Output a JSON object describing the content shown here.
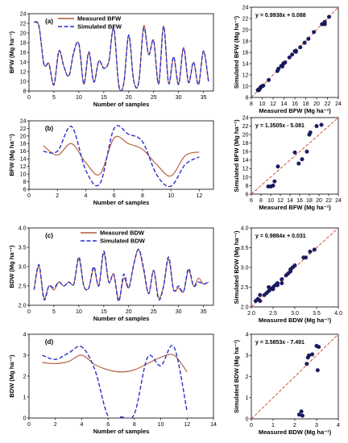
{
  "chart_data": [
    {
      "id": "a",
      "type": "line",
      "panel_label": "(a)",
      "xlabel": "Number of samples",
      "ylabel": "BFW (Mg ha⁻¹)",
      "xlim": [
        0,
        37
      ],
      "ylim": [
        8,
        24
      ],
      "xticks": [
        0,
        5,
        10,
        15,
        20,
        25,
        30,
        35
      ],
      "yticks": [
        8,
        10,
        12,
        14,
        16,
        18,
        20,
        22,
        24
      ],
      "legend_position": "top-left",
      "x": [
        1,
        2,
        3,
        4,
        5,
        6,
        7,
        8,
        9,
        10,
        11,
        12,
        13,
        14,
        15,
        16,
        17,
        18,
        19,
        20,
        21,
        22,
        23,
        24,
        25,
        26,
        27,
        28,
        29,
        30,
        31,
        32,
        33,
        34,
        35,
        36
      ],
      "series": [
        {
          "name": "Measured BFW",
          "color": "#b2583a",
          "dash": "solid",
          "values": [
            22.3,
            21.5,
            13.5,
            13.7,
            9.2,
            16.2,
            13.0,
            11.2,
            16.0,
            17.8,
            9.4,
            16.0,
            9.8,
            14.2,
            12.8,
            14.0,
            21.0,
            9.2,
            9.5,
            19.5,
            10.2,
            9.7,
            21.5,
            15.5,
            18.5,
            9.5,
            21.5,
            9.6,
            15.0,
            9.3,
            17.0,
            9.7,
            13.9,
            9.4,
            16.2,
            10.0
          ]
        },
        {
          "name": "Simulated BFW",
          "color": "#2b2ec9",
          "dash": "dashed",
          "values": [
            22.3,
            21.3,
            13.6,
            13.5,
            9.3,
            16.3,
            13.1,
            11.1,
            16.2,
            17.7,
            9.5,
            16.1,
            9.9,
            14.2,
            12.7,
            14.1,
            21.0,
            9.3,
            9.5,
            19.6,
            10.1,
            9.8,
            21.0,
            15.6,
            18.4,
            9.5,
            21.4,
            9.6,
            15.1,
            9.4,
            16.9,
            9.8,
            14.0,
            9.3,
            16.3,
            10.0
          ]
        }
      ]
    },
    {
      "id": "a_scatter",
      "type": "scatter",
      "xlabel": "Measured BFW (Mg ha⁻¹)",
      "ylabel": "Simulated BFW (Mg ha⁻¹)",
      "xlim": [
        8,
        24
      ],
      "ylim": [
        8,
        24
      ],
      "xticks": [
        8,
        10,
        12,
        14,
        16,
        18,
        20,
        22,
        24
      ],
      "yticks": [
        8,
        10,
        12,
        14,
        16,
        18,
        20,
        22,
        24
      ],
      "equation": "y = 0.9938x + 0.088",
      "points": [
        [
          9.2,
          9.3
        ],
        [
          9.3,
          9.4
        ],
        [
          9.4,
          9.3
        ],
        [
          9.5,
          9.5
        ],
        [
          9.6,
          9.6
        ],
        [
          9.7,
          9.8
        ],
        [
          9.8,
          9.9
        ],
        [
          10.0,
          10.0
        ],
        [
          10.2,
          10.1
        ],
        [
          11.2,
          11.1
        ],
        [
          12.8,
          12.7
        ],
        [
          13.0,
          13.1
        ],
        [
          13.5,
          13.6
        ],
        [
          13.7,
          13.5
        ],
        [
          13.9,
          14.0
        ],
        [
          14.0,
          14.1
        ],
        [
          14.2,
          14.2
        ],
        [
          15.0,
          15.1
        ],
        [
          15.5,
          15.6
        ],
        [
          16.0,
          16.2
        ],
        [
          16.2,
          16.3
        ],
        [
          16.2,
          16.1
        ],
        [
          17.0,
          16.9
        ],
        [
          17.8,
          17.7
        ],
        [
          18.5,
          18.4
        ],
        [
          19.5,
          19.6
        ],
        [
          21.0,
          21.0
        ],
        [
          21.5,
          21.3
        ],
        [
          21.5,
          21.0
        ],
        [
          21.5,
          21.4
        ],
        [
          22.3,
          22.3
        ]
      ]
    },
    {
      "id": "b",
      "type": "line",
      "panel_label": "(b)",
      "xlabel": "Number of samples",
      "ylabel": "BFW (Mg ha⁻¹)",
      "xlim": [
        0,
        13
      ],
      "ylim": [
        6,
        24
      ],
      "xticks": [
        0,
        2,
        4,
        6,
        8,
        10,
        12
      ],
      "yticks": [
        6,
        8,
        10,
        12,
        14,
        16,
        18,
        20,
        22,
        24
      ],
      "x": [
        1,
        2,
        3,
        4,
        5,
        6,
        7,
        8,
        9,
        10,
        11,
        12
      ],
      "series": [
        {
          "name": "",
          "color": "#b2583a",
          "dash": "solid",
          "values": [
            17.5,
            15.0,
            18.0,
            13.0,
            10.0,
            19.5,
            18.0,
            16.5,
            12.5,
            9.5,
            14.8,
            15.8
          ]
        },
        {
          "name": "",
          "color": "#2b2ec9",
          "dash": "dashed",
          "values": [
            16.0,
            16.0,
            22.5,
            11.0,
            7.5,
            22.0,
            20.5,
            18.5,
            9.8,
            6.8,
            12.5,
            14.5
          ]
        }
      ]
    },
    {
      "id": "b_scatter",
      "type": "scatter",
      "xlabel": "Measured BFW (Mg ha⁻¹)",
      "ylabel": "Simulated BFW (Mg ha⁻¹)",
      "xlim": [
        6,
        24
      ],
      "ylim": [
        6,
        24
      ],
      "xticks": [
        6,
        8,
        10,
        12,
        14,
        16,
        18,
        20,
        22,
        24
      ],
      "yticks": [
        6,
        8,
        10,
        12,
        14,
        16,
        18,
        20,
        22,
        24
      ],
      "equation": "y = 1.3505x - 5.081",
      "points": [
        [
          9.5,
          7.8
        ],
        [
          10.0,
          7.8
        ],
        [
          10.5,
          8.0
        ],
        [
          10.8,
          9.0
        ],
        [
          11.5,
          12.5
        ],
        [
          15.0,
          15.8
        ],
        [
          15.8,
          13.2
        ],
        [
          16.5,
          14.2
        ],
        [
          17.5,
          16.0
        ],
        [
          18.0,
          20.0
        ],
        [
          18.2,
          20.5
        ],
        [
          19.5,
          22.0
        ],
        [
          20.5,
          22.3
        ]
      ]
    },
    {
      "id": "c",
      "type": "line",
      "panel_label": "(c)",
      "xlabel": "Number of samples",
      "ylabel": "BDW (Mg ha⁻¹)",
      "xlim": [
        0,
        37
      ],
      "ylim": [
        2.0,
        4.0
      ],
      "xticks": [
        0,
        5,
        10,
        15,
        20,
        25,
        30,
        35
      ],
      "yticks": [
        2.0,
        2.5,
        3.0,
        3.5,
        4.0
      ],
      "legend_position": "top-center",
      "x": [
        1,
        2,
        3,
        4,
        5,
        6,
        7,
        8,
        9,
        10,
        11,
        12,
        13,
        14,
        15,
        16,
        17,
        18,
        19,
        20,
        21,
        22,
        23,
        24,
        25,
        26,
        27,
        28,
        29,
        30,
        31,
        32,
        33,
        34,
        35,
        36
      ],
      "series": [
        {
          "name": "Measured BDW",
          "color": "#b2583a",
          "dash": "solid",
          "values": [
            2.4,
            3.0,
            2.2,
            2.5,
            2.4,
            2.6,
            2.5,
            2.6,
            2.55,
            3.2,
            2.5,
            2.45,
            2.95,
            2.5,
            3.35,
            2.6,
            2.8,
            2.15,
            2.7,
            2.45,
            3.05,
            3.45,
            2.9,
            2.3,
            2.9,
            2.2,
            2.5,
            3.2,
            2.4,
            2.45,
            2.35,
            2.9,
            2.5,
            2.7,
            2.55,
            2.6
          ]
        },
        {
          "name": "Simulated BDW",
          "color": "#2b2ec9",
          "dash": "dashed",
          "values": [
            2.4,
            3.05,
            2.15,
            2.5,
            2.45,
            2.6,
            2.5,
            2.6,
            2.55,
            3.25,
            2.5,
            2.45,
            3.0,
            2.5,
            3.4,
            2.6,
            2.8,
            2.1,
            2.8,
            2.45,
            3.05,
            3.45,
            2.95,
            2.3,
            2.9,
            2.15,
            2.5,
            3.25,
            2.4,
            2.5,
            2.35,
            2.95,
            2.5,
            2.6,
            2.55,
            2.6
          ]
        }
      ]
    },
    {
      "id": "c_scatter",
      "type": "scatter",
      "xlabel": "Measured BDW (Mg ha⁻¹)",
      "ylabel": "Simulated BDW (Mg ha⁻¹)",
      "xlim": [
        2.0,
        4.0
      ],
      "ylim": [
        2.0,
        4.0
      ],
      "xticks": [
        2.0,
        2.5,
        3.0,
        3.5,
        4.0
      ],
      "yticks": [
        2.0,
        2.5,
        3.0,
        3.5,
        4.0
      ],
      "equation": "y = 0.9884x + 0.031",
      "points": [
        [
          2.1,
          2.15
        ],
        [
          2.15,
          2.2
        ],
        [
          2.2,
          2.15
        ],
        [
          2.2,
          2.3
        ],
        [
          2.3,
          2.3
        ],
        [
          2.35,
          2.35
        ],
        [
          2.4,
          2.4
        ],
        [
          2.4,
          2.5
        ],
        [
          2.45,
          2.45
        ],
        [
          2.5,
          2.45
        ],
        [
          2.5,
          2.5
        ],
        [
          2.55,
          2.55
        ],
        [
          2.6,
          2.6
        ],
        [
          2.6,
          2.55
        ],
        [
          2.7,
          2.6
        ],
        [
          2.7,
          2.7
        ],
        [
          2.8,
          2.8
        ],
        [
          2.85,
          2.85
        ],
        [
          2.9,
          2.9
        ],
        [
          2.9,
          2.95
        ],
        [
          2.95,
          3.0
        ],
        [
          3.0,
          3.05
        ],
        [
          3.2,
          3.25
        ],
        [
          3.25,
          3.25
        ],
        [
          3.35,
          3.4
        ],
        [
          3.45,
          3.45
        ]
      ]
    },
    {
      "id": "d",
      "type": "line",
      "panel_label": "(d)",
      "xlabel": "Number of samples",
      "ylabel": "BDW (Mg ha⁻¹)",
      "xlim": [
        0,
        14
      ],
      "ylim": [
        0,
        4
      ],
      "xticks": [
        0,
        2,
        4,
        6,
        8,
        10,
        12,
        14
      ],
      "yticks": [
        0,
        1,
        2,
        3,
        4
      ],
      "x": [
        1,
        2,
        3,
        4,
        5,
        6,
        7,
        8,
        9,
        10,
        11,
        12
      ],
      "series": [
        {
          "name": "",
          "color": "#b2583a",
          "dash": "solid",
          "values": [
            2.65,
            2.6,
            2.7,
            3.0,
            2.55,
            2.3,
            2.2,
            2.3,
            2.6,
            2.9,
            3.0,
            2.2
          ]
        },
        {
          "name": "",
          "color": "#2b2ec9",
          "dash": "dashed",
          "values": [
            3.0,
            2.8,
            3.1,
            3.4,
            2.3,
            0.1,
            0.05,
            0.2,
            2.9,
            2.5,
            3.4,
            0.3
          ]
        }
      ]
    },
    {
      "id": "d_scatter",
      "type": "scatter",
      "xlabel": "Measured BDW (Mg ha⁻¹)",
      "ylabel": "Simulated BDW (Mg ha⁻¹)",
      "xlim": [
        0,
        4
      ],
      "ylim": [
        0,
        4
      ],
      "xticks": [
        0,
        1,
        2,
        3,
        4
      ],
      "yticks": [
        0,
        1,
        2,
        3,
        4
      ],
      "equation": "y = 3.5853x - 7.491",
      "points": [
        [
          2.2,
          0.2
        ],
        [
          2.3,
          0.35
        ],
        [
          2.35,
          0.15
        ],
        [
          2.55,
          2.6
        ],
        [
          2.6,
          2.9
        ],
        [
          2.65,
          3.0
        ],
        [
          2.8,
          3.05
        ],
        [
          3.0,
          3.45
        ],
        [
          3.05,
          2.3
        ],
        [
          3.1,
          3.4
        ]
      ]
    }
  ]
}
